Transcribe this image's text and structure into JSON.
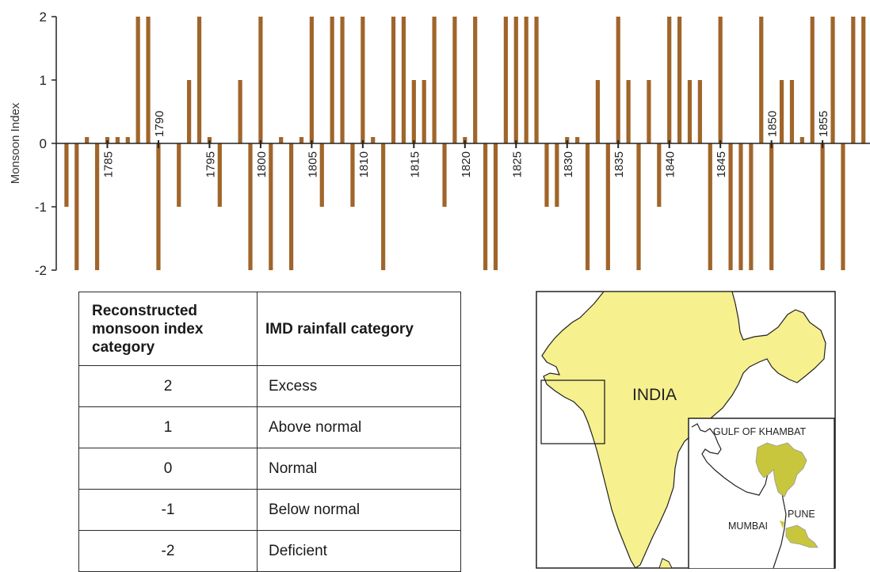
{
  "chart_data": {
    "type": "bar",
    "ylabel": "Monsoon Index",
    "ylim": [
      -2,
      2
    ],
    "yticks": [
      2,
      1,
      0,
      -1,
      -2
    ],
    "xlim": [
      1780,
      1860
    ],
    "x_tick_labels": [
      1785,
      1790,
      1795,
      1800,
      1805,
      1810,
      1815,
      1820,
      1825,
      1830,
      1835,
      1840,
      1845,
      1850,
      1855,
      1860
    ],
    "bar_color": "#a0652a",
    "x": [
      1781,
      1782,
      1783,
      1784,
      1785,
      1786,
      1787,
      1788,
      1789,
      1790,
      1791,
      1792,
      1793,
      1794,
      1795,
      1796,
      1797,
      1798,
      1799,
      1800,
      1801,
      1802,
      1803,
      1804,
      1805,
      1806,
      1807,
      1808,
      1809,
      1810,
      1811,
      1812,
      1813,
      1814,
      1815,
      1816,
      1817,
      1818,
      1819,
      1820,
      1821,
      1822,
      1823,
      1824,
      1825,
      1826,
      1827,
      1828,
      1829,
      1830,
      1831,
      1832,
      1833,
      1834,
      1835,
      1836,
      1837,
      1838,
      1839,
      1840,
      1841,
      1842,
      1843,
      1844,
      1845,
      1846,
      1847,
      1848,
      1849,
      1850,
      1851,
      1852,
      1853,
      1854,
      1855,
      1856,
      1857,
      1858,
      1859,
      1860
    ],
    "values": [
      -1,
      -2,
      0.1,
      -2,
      0.1,
      0.1,
      0.1,
      2,
      2,
      -2,
      0,
      -1,
      1,
      2,
      0.1,
      -1,
      0,
      1,
      -2,
      2,
      -2,
      0.1,
      -2,
      0.1,
      2,
      -1,
      2,
      2,
      -1,
      2,
      0.1,
      -2,
      2,
      2,
      1,
      1,
      2,
      -1,
      2,
      0.1,
      2,
      -2,
      -2,
      2,
      2,
      2,
      2,
      -1,
      -1,
      0.1,
      0.1,
      -2,
      1,
      -2,
      2,
      1,
      -2,
      1,
      -1,
      2,
      2,
      1,
      1,
      -2,
      2,
      -2,
      -2,
      -2,
      2,
      -2,
      1,
      1,
      0.1,
      2,
      -2,
      2,
      -2,
      2,
      2,
      0.1
    ]
  },
  "table": {
    "header_col1": "Reconstructed monsoon index category",
    "header_col2": "IMD rainfall category",
    "rows": [
      {
        "index": "2",
        "category": "Excess"
      },
      {
        "index": "1",
        "category": "Above normal"
      },
      {
        "index": "0",
        "category": "Normal"
      },
      {
        "index": "-1",
        "category": "Below normal"
      },
      {
        "index": "-2",
        "category": "Deficient"
      }
    ]
  },
  "map": {
    "country_label": "INDIA",
    "inset_labels": {
      "gulf": "GULF OF KHAMBAT",
      "mumbai": "MUMBAI",
      "pune": "PUNE"
    },
    "land_color": "#f6f08e",
    "region_color": "#c8c63c"
  }
}
